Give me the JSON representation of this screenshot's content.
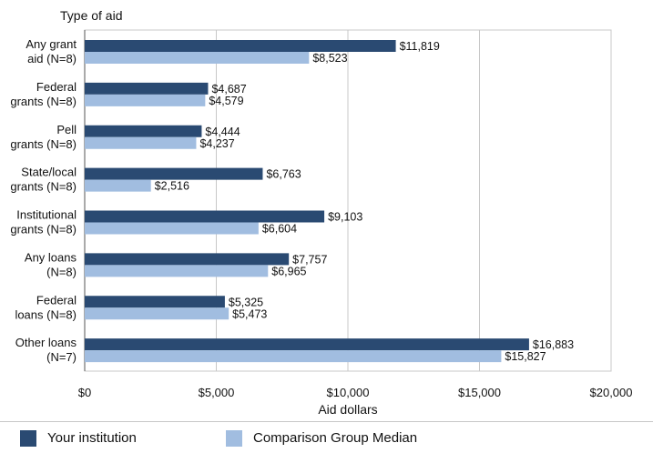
{
  "colors": {
    "series1": "#2a4a72",
    "series2": "#a1bde0",
    "plot_border": "#c8c8c8",
    "grid": "#c8c8c8"
  },
  "legend": {
    "item1": "Your institution",
    "item2": "Comparison Group Median"
  },
  "chart_data": {
    "type": "bar",
    "orientation": "horizontal",
    "title": "Type of aid",
    "xlabel": "Aid dollars",
    "ylabel": "Type of aid",
    "xlim": [
      0,
      20000
    ],
    "xticks": [
      0,
      5000,
      10000,
      15000,
      20000
    ],
    "xtick_labels": [
      "$0",
      "$5,000",
      "$10,000",
      "$15,000",
      "$20,000"
    ],
    "grid": true,
    "legend_position": "bottom",
    "categories": [
      [
        "Any grant",
        "aid (N=8)"
      ],
      [
        "Federal",
        "grants (N=8)"
      ],
      [
        "Pell",
        "grants (N=8)"
      ],
      [
        "State/local",
        "grants (N=8)"
      ],
      [
        "Institutional",
        "grants (N=8)"
      ],
      [
        "Any loans",
        "(N=8)"
      ],
      [
        "Federal",
        "loans (N=8)"
      ],
      [
        "Other loans",
        "(N=7)"
      ]
    ],
    "series": [
      {
        "name": "Your institution",
        "values": [
          11819,
          4687,
          4444,
          6763,
          9103,
          7757,
          5325,
          16883
        ],
        "labels": [
          "$11,819",
          "$4,687",
          "$4,444",
          "$6,763",
          "$9,103",
          "$7,757",
          "$5,325",
          "$16,883"
        ]
      },
      {
        "name": "Comparison Group Median",
        "values": [
          8523,
          4579,
          4237,
          2516,
          6604,
          6965,
          5473,
          15827
        ],
        "labels": [
          "$8,523",
          "$4,579",
          "$4,237",
          "$2,516",
          "$6,604",
          "$6,965",
          "$5,473",
          "$15,827"
        ]
      }
    ]
  }
}
